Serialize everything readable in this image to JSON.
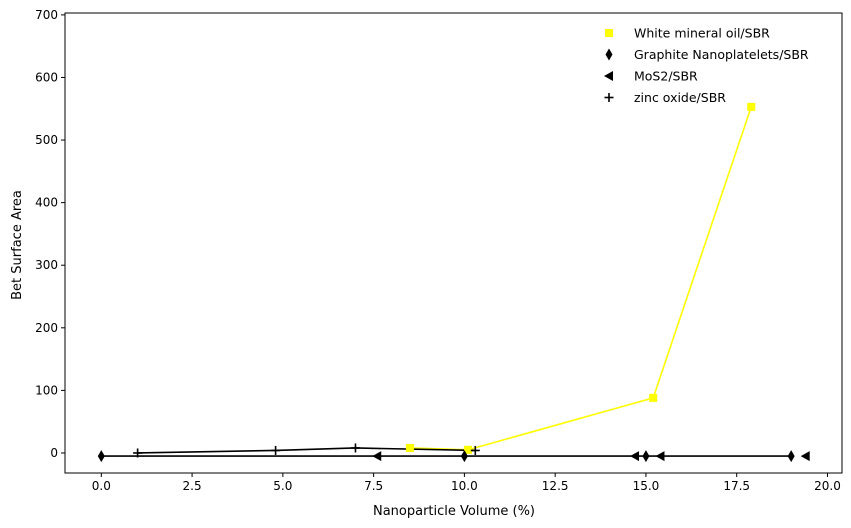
{
  "chart_data": {
    "type": "scatter",
    "title": "",
    "xlabel": "Nanoparticle Volume (%)",
    "ylabel": "Bet Surface Area",
    "xlim": [
      -1.0,
      20.4
    ],
    "ylim": [
      -32,
      703
    ],
    "xticks": [
      0.0,
      2.5,
      5.0,
      7.5,
      10.0,
      12.5,
      15.0,
      17.5,
      20.0
    ],
    "xtick_labels": [
      "0.0",
      "2.5",
      "5.0",
      "7.5",
      "10.0",
      "12.5",
      "15.0",
      "17.5",
      "20.0"
    ],
    "yticks": [
      0,
      100,
      200,
      300,
      400,
      500,
      600,
      700
    ],
    "ytick_labels": [
      "0",
      "100",
      "200",
      "300",
      "400",
      "500",
      "600",
      "700"
    ],
    "grid": false,
    "legend_position": "top-right",
    "series": [
      {
        "name": "White mineral oil/SBR",
        "marker": "square",
        "color": "#ffff00",
        "line_color": "#ffff00",
        "points": [
          {
            "x": 8.5,
            "y": 8,
            "connected": true
          },
          {
            "x": 10.1,
            "y": 5,
            "connected": true
          },
          {
            "x": 15.2,
            "y": 88,
            "connected": true
          },
          {
            "x": 17.9,
            "y": 553,
            "connected": true
          }
        ]
      },
      {
        "name": "Graphite Nanoplatelets/SBR",
        "marker": "thin-diamond",
        "color": "#000000",
        "line_color": "#000000",
        "points": [
          {
            "x": 0.0,
            "y": -5,
            "connected": true
          },
          {
            "x": 10.0,
            "y": -5,
            "connected": true
          },
          {
            "x": 15.0,
            "y": -5,
            "connected": true
          },
          {
            "x": 19.0,
            "y": -5,
            "connected": true
          }
        ]
      },
      {
        "name": "MoS2/SBR",
        "marker": "triangle-left",
        "color": "#000000",
        "line_color": "#000000",
        "points": [
          {
            "x": 7.6,
            "y": -5,
            "connected": false
          },
          {
            "x": 14.7,
            "y": -5,
            "connected": false
          },
          {
            "x": 15.4,
            "y": -5,
            "connected": false
          },
          {
            "x": 19.4,
            "y": -5,
            "connected": false
          }
        ]
      },
      {
        "name": "zinc oxide/SBR",
        "marker": "plus",
        "color": "#000000",
        "line_color": "#000000",
        "points": [
          {
            "x": 1.0,
            "y": 0,
            "connected": true
          },
          {
            "x": 4.8,
            "y": 4,
            "connected": true
          },
          {
            "x": 7.0,
            "y": 8,
            "connected": true
          },
          {
            "x": 10.3,
            "y": 4,
            "connected": true
          }
        ]
      }
    ]
  }
}
